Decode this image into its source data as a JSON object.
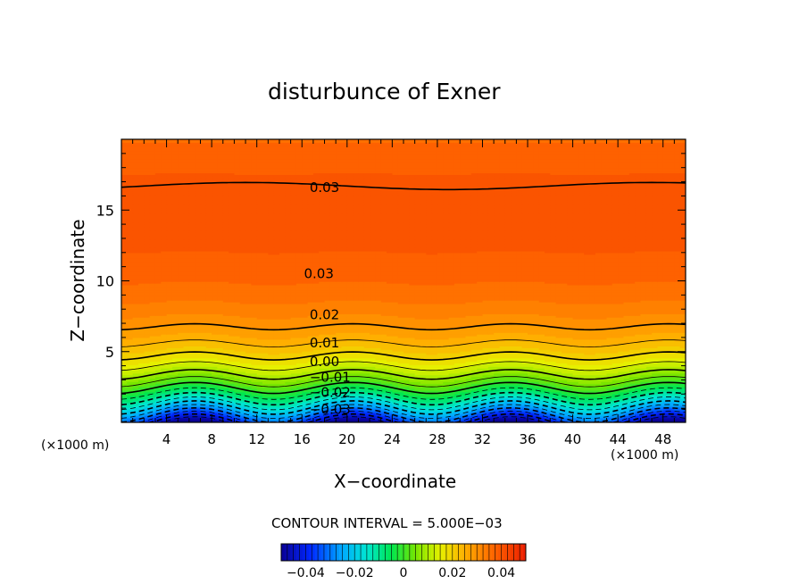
{
  "chart_data": {
    "type": "contour",
    "title": "disturbunce of Exner",
    "xlabel": "X−coordinate",
    "ylabel": "Z−coordinate",
    "x_unit_label": "(×1000 m)",
    "z_unit_label": "(×1000 m)",
    "xlim": [
      0,
      50
    ],
    "zlim": [
      0,
      20
    ],
    "x_ticks": [
      4,
      8,
      12,
      16,
      20,
      24,
      28,
      32,
      36,
      40,
      44,
      48
    ],
    "z_ticks": [
      5,
      10,
      15
    ],
    "contour_interval_text": "CONTOUR INTERVAL = 5.000E−03",
    "contour_interval": 0.005,
    "value_range": [
      -0.05,
      0.05
    ],
    "contour_labels": [
      {
        "text": "0.03",
        "x": 18,
        "z": 16.6
      },
      {
        "text": "0.03",
        "x": 17.5,
        "z": 10.5
      },
      {
        "text": "0.02",
        "x": 18,
        "z": 7.6
      },
      {
        "text": "0.01",
        "x": 18,
        "z": 5.6
      },
      {
        "text": "0.00",
        "x": 18,
        "z": 4.3
      },
      {
        "text": "−0.01",
        "x": 18.5,
        "z": 3.2
      },
      {
        "text": "−0.02",
        "x": 18.5,
        "z": 2.1
      },
      {
        "text": "−0.03",
        "x": 18.5,
        "z": 0.9
      }
    ],
    "colorbar": {
      "min": -0.05,
      "max": 0.05,
      "tick_values": [
        -0.04,
        -0.02,
        0,
        0.02,
        0.04
      ],
      "tick_labels": [
        "−0.04",
        "−0.02",
        "0",
        "0.02",
        "0.04"
      ]
    }
  }
}
